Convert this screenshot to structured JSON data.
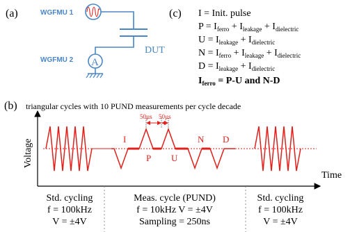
{
  "panel_a": {
    "label": "(a)",
    "wgfmu1": "WGFMU 1",
    "wgfmu2": "WGFMU 2",
    "ammeter": "A",
    "dut": "DUT"
  },
  "panel_c": {
    "label": "(c)",
    "line_i": "I = Init. pulse",
    "line_p": {
      "lhs": "P = I",
      "t1": "ferro",
      "p1": " + I",
      "t2": "leakage",
      "p2": " + I",
      "t3": "dielectric"
    },
    "line_u": {
      "lhs": "U = I",
      "t1": "leakage",
      "p1": " + I",
      "t2": "dielectric"
    },
    "line_n": {
      "lhs": "N = I",
      "t1": "ferro",
      "p1": " + I",
      "t2": "leakage",
      "p2": " + I",
      "t3": "dielectric"
    },
    "line_d": {
      "lhs": "D = I",
      "t1": "leakage",
      "p1": " + I",
      "t2": "dielectric"
    },
    "line_f": {
      "lhs": "I",
      "t1": "ferro",
      "rhs": " = P-U and N-D"
    }
  },
  "panel_b": {
    "label": "(b)",
    "title": "triangular cycles with 10 PUND measurements per cycle decade",
    "ylabel": "Voltage",
    "xlabel": "Time",
    "pulse_labels": [
      "I",
      "P",
      "U",
      "N",
      "D"
    ],
    "timing": [
      "50µs",
      "50µs"
    ],
    "colors": {
      "wave": "#e0201b",
      "circuit": "#4a86c5",
      "axis": "#000000"
    },
    "sections": [
      {
        "line1": "Std. cycling",
        "line2": "f = 100kHz",
        "line3": "V = ±4V"
      },
      {
        "line1": "Meas. cycle (PUND)",
        "line2": "f = 10kHz V = ±4V",
        "line3": "Sampling = 250ns"
      },
      {
        "line1": "Std. cycling",
        "line2": "f = 100kHz",
        "line3": "V = ±4V"
      }
    ]
  }
}
